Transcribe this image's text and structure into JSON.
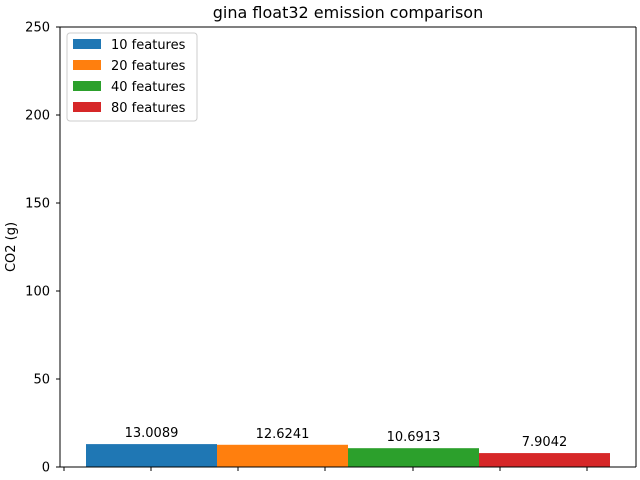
{
  "chart_data": {
    "type": "bar",
    "title": "gina float32 emission comparison",
    "xlabel": "",
    "ylabel": "CO2 (g)",
    "ylim": [
      0,
      250
    ],
    "yticks": [
      0,
      50,
      100,
      150,
      200,
      250
    ],
    "grid": false,
    "legend_position": "top-left",
    "series": [
      {
        "name": "10 features",
        "value": 13.0089,
        "label": "13.0089",
        "color": "#1f77b4"
      },
      {
        "name": "20 features",
        "value": 12.6241,
        "label": "12.6241",
        "color": "#ff7f0e"
      },
      {
        "name": "40 features",
        "value": 10.6913,
        "label": "10.6913",
        "color": "#2ca02c"
      },
      {
        "name": "80 features",
        "value": 7.9042,
        "label": "7.9042",
        "color": "#d62728"
      }
    ]
  }
}
